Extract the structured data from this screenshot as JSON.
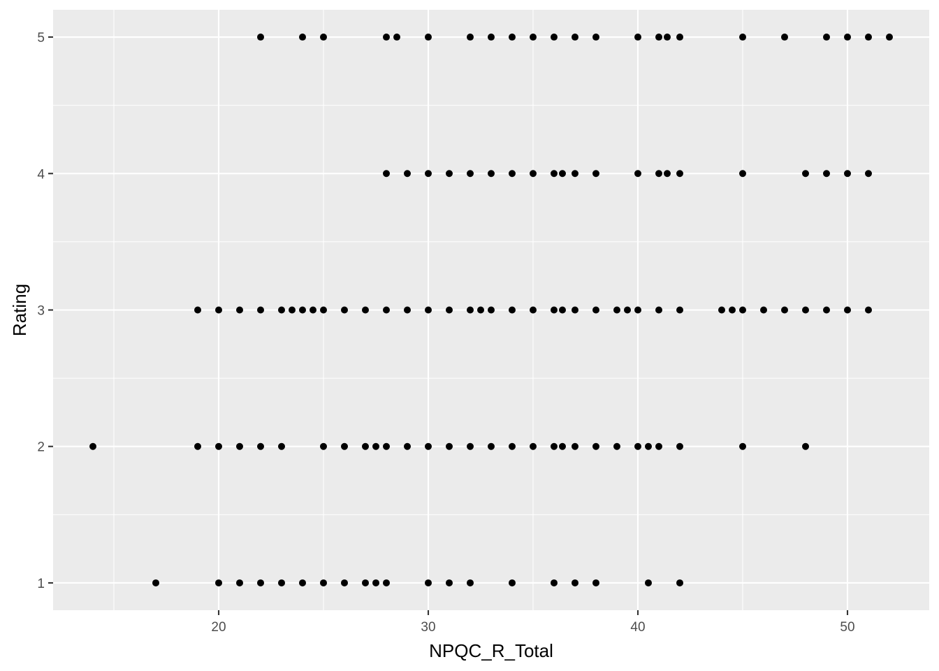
{
  "chart_data": {
    "type": "scatter",
    "xlabel": "NPQC_R_Total",
    "ylabel": "Rating",
    "xlim": [
      12.1,
      53.9
    ],
    "ylim": [
      0.8,
      5.2
    ],
    "x_ticks": [
      20,
      30,
      40,
      50
    ],
    "y_ticks": [
      1,
      2,
      3,
      4,
      5
    ],
    "grid": true,
    "legend": "none",
    "point_color": "#000000",
    "panel_color": "#EBEBEB",
    "points": [
      {
        "x": 22,
        "y": 5
      },
      {
        "x": 24,
        "y": 5
      },
      {
        "x": 25,
        "y": 5
      },
      {
        "x": 28,
        "y": 5
      },
      {
        "x": 28.5,
        "y": 5
      },
      {
        "x": 30,
        "y": 5
      },
      {
        "x": 32,
        "y": 5
      },
      {
        "x": 33,
        "y": 5
      },
      {
        "x": 34,
        "y": 5
      },
      {
        "x": 35,
        "y": 5
      },
      {
        "x": 36,
        "y": 5
      },
      {
        "x": 37,
        "y": 5
      },
      {
        "x": 38,
        "y": 5
      },
      {
        "x": 40,
        "y": 5
      },
      {
        "x": 41,
        "y": 5
      },
      {
        "x": 41.4,
        "y": 5
      },
      {
        "x": 42,
        "y": 5
      },
      {
        "x": 45,
        "y": 5
      },
      {
        "x": 47,
        "y": 5
      },
      {
        "x": 49,
        "y": 5
      },
      {
        "x": 50,
        "y": 5
      },
      {
        "x": 51,
        "y": 5
      },
      {
        "x": 52,
        "y": 5
      },
      {
        "x": 28,
        "y": 4
      },
      {
        "x": 29,
        "y": 4
      },
      {
        "x": 30,
        "y": 4
      },
      {
        "x": 31,
        "y": 4
      },
      {
        "x": 32,
        "y": 4
      },
      {
        "x": 33,
        "y": 4
      },
      {
        "x": 34,
        "y": 4
      },
      {
        "x": 35,
        "y": 4
      },
      {
        "x": 36,
        "y": 4
      },
      {
        "x": 36.4,
        "y": 4
      },
      {
        "x": 37,
        "y": 4
      },
      {
        "x": 38,
        "y": 4
      },
      {
        "x": 40,
        "y": 4
      },
      {
        "x": 41,
        "y": 4
      },
      {
        "x": 41.4,
        "y": 4
      },
      {
        "x": 42,
        "y": 4
      },
      {
        "x": 45,
        "y": 4
      },
      {
        "x": 48,
        "y": 4
      },
      {
        "x": 49,
        "y": 4
      },
      {
        "x": 50,
        "y": 4
      },
      {
        "x": 51,
        "y": 4
      },
      {
        "x": 19,
        "y": 3
      },
      {
        "x": 20,
        "y": 3
      },
      {
        "x": 21,
        "y": 3
      },
      {
        "x": 22,
        "y": 3
      },
      {
        "x": 23,
        "y": 3
      },
      {
        "x": 23.5,
        "y": 3
      },
      {
        "x": 24,
        "y": 3
      },
      {
        "x": 24.5,
        "y": 3
      },
      {
        "x": 25,
        "y": 3
      },
      {
        "x": 26,
        "y": 3
      },
      {
        "x": 27,
        "y": 3
      },
      {
        "x": 28,
        "y": 3
      },
      {
        "x": 29,
        "y": 3
      },
      {
        "x": 30,
        "y": 3
      },
      {
        "x": 31,
        "y": 3
      },
      {
        "x": 32,
        "y": 3
      },
      {
        "x": 32.5,
        "y": 3
      },
      {
        "x": 33,
        "y": 3
      },
      {
        "x": 34,
        "y": 3
      },
      {
        "x": 35,
        "y": 3
      },
      {
        "x": 36,
        "y": 3
      },
      {
        "x": 36.4,
        "y": 3
      },
      {
        "x": 37,
        "y": 3
      },
      {
        "x": 38,
        "y": 3
      },
      {
        "x": 39,
        "y": 3
      },
      {
        "x": 39.5,
        "y": 3
      },
      {
        "x": 40,
        "y": 3
      },
      {
        "x": 41,
        "y": 3
      },
      {
        "x": 42,
        "y": 3
      },
      {
        "x": 44,
        "y": 3
      },
      {
        "x": 44.5,
        "y": 3
      },
      {
        "x": 45,
        "y": 3
      },
      {
        "x": 46,
        "y": 3
      },
      {
        "x": 47,
        "y": 3
      },
      {
        "x": 48,
        "y": 3
      },
      {
        "x": 49,
        "y": 3
      },
      {
        "x": 50,
        "y": 3
      },
      {
        "x": 51,
        "y": 3
      },
      {
        "x": 14,
        "y": 2
      },
      {
        "x": 19,
        "y": 2
      },
      {
        "x": 20,
        "y": 2
      },
      {
        "x": 21,
        "y": 2
      },
      {
        "x": 22,
        "y": 2
      },
      {
        "x": 23,
        "y": 2
      },
      {
        "x": 25,
        "y": 2
      },
      {
        "x": 26,
        "y": 2
      },
      {
        "x": 27,
        "y": 2
      },
      {
        "x": 27.5,
        "y": 2
      },
      {
        "x": 28,
        "y": 2
      },
      {
        "x": 29,
        "y": 2
      },
      {
        "x": 30,
        "y": 2
      },
      {
        "x": 31,
        "y": 2
      },
      {
        "x": 32,
        "y": 2
      },
      {
        "x": 33,
        "y": 2
      },
      {
        "x": 34,
        "y": 2
      },
      {
        "x": 35,
        "y": 2
      },
      {
        "x": 36,
        "y": 2
      },
      {
        "x": 36.4,
        "y": 2
      },
      {
        "x": 37,
        "y": 2
      },
      {
        "x": 38,
        "y": 2
      },
      {
        "x": 39,
        "y": 2
      },
      {
        "x": 40,
        "y": 2
      },
      {
        "x": 40.5,
        "y": 2
      },
      {
        "x": 41,
        "y": 2
      },
      {
        "x": 42,
        "y": 2
      },
      {
        "x": 45,
        "y": 2
      },
      {
        "x": 48,
        "y": 2
      },
      {
        "x": 17,
        "y": 1
      },
      {
        "x": 20,
        "y": 1
      },
      {
        "x": 21,
        "y": 1
      },
      {
        "x": 22,
        "y": 1
      },
      {
        "x": 23,
        "y": 1
      },
      {
        "x": 24,
        "y": 1
      },
      {
        "x": 25,
        "y": 1
      },
      {
        "x": 26,
        "y": 1
      },
      {
        "x": 27,
        "y": 1
      },
      {
        "x": 27.5,
        "y": 1
      },
      {
        "x": 28,
        "y": 1
      },
      {
        "x": 30,
        "y": 1
      },
      {
        "x": 31,
        "y": 1
      },
      {
        "x": 32,
        "y": 1
      },
      {
        "x": 34,
        "y": 1
      },
      {
        "x": 36,
        "y": 1
      },
      {
        "x": 37,
        "y": 1
      },
      {
        "x": 38,
        "y": 1
      },
      {
        "x": 40.5,
        "y": 1
      },
      {
        "x": 42,
        "y": 1
      }
    ]
  }
}
